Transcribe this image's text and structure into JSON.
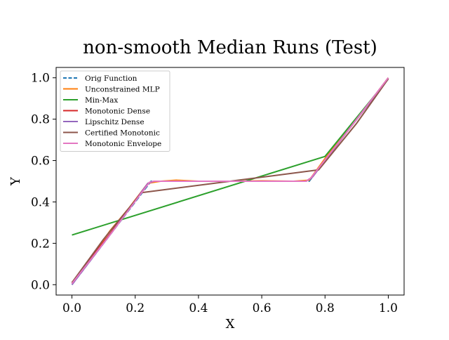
{
  "chart_data": {
    "type": "line",
    "title": "non-smooth Median Runs (Test)",
    "xlabel": "X",
    "ylabel": "Y",
    "xlim": [
      -0.05,
      1.05
    ],
    "ylim": [
      -0.05,
      1.05
    ],
    "xticks": [
      0.0,
      0.2,
      0.4,
      0.6,
      0.8,
      1.0
    ],
    "xtick_labels": [
      "0.0",
      "0.2",
      "0.4",
      "0.6",
      "0.8",
      "1.0"
    ],
    "yticks": [
      0.0,
      0.2,
      0.4,
      0.6,
      0.8,
      1.0
    ],
    "ytick_labels": [
      "0.0",
      "0.2",
      "0.4",
      "0.6",
      "0.8",
      "1.0"
    ],
    "grid": false,
    "legend_position": "upper-left",
    "series": [
      {
        "name": "Orig Function",
        "color": "#1f77b4",
        "dashed": true,
        "x": [
          0.0,
          0.125,
          0.25,
          0.5,
          0.75,
          0.875,
          1.0
        ],
        "y": [
          0.0,
          0.25,
          0.5,
          0.5,
          0.5,
          0.75,
          1.0
        ]
      },
      {
        "name": "Unconstrained MLP",
        "color": "#ff7f0e",
        "dashed": false,
        "x": [
          0.0,
          0.06,
          0.12,
          0.18,
          0.24,
          0.28,
          0.33,
          0.4,
          0.5,
          0.6,
          0.7,
          0.75,
          0.8,
          0.9,
          1.0
        ],
        "y": [
          0.01,
          0.13,
          0.26,
          0.37,
          0.49,
          0.5,
          0.505,
          0.5,
          0.5,
          0.502,
          0.5,
          0.505,
          0.61,
          0.8,
          1.0
        ]
      },
      {
        "name": "Min-Max",
        "color": "#2ca02c",
        "dashed": false,
        "x": [
          0.0,
          0.8,
          1.0
        ],
        "y": [
          0.24,
          0.62,
          0.995
        ]
      },
      {
        "name": "Monotonic Dense",
        "color": "#d62728",
        "dashed": false,
        "x": [
          0.0,
          0.125,
          0.24,
          0.26,
          0.5,
          0.74,
          0.76,
          0.875,
          1.0
        ],
        "y": [
          0.01,
          0.255,
          0.49,
          0.5,
          0.5,
          0.5,
          0.52,
          0.75,
          0.995
        ]
      },
      {
        "name": "Lipschitz Dense",
        "color": "#9467bd",
        "dashed": false,
        "x": [
          0.0,
          0.125,
          0.24,
          0.26,
          0.5,
          0.74,
          0.76,
          0.875,
          1.0
        ],
        "y": [
          0.0,
          0.25,
          0.49,
          0.5,
          0.5,
          0.5,
          0.52,
          0.75,
          0.995
        ]
      },
      {
        "name": "Certified Monotonic",
        "color": "#8c564b",
        "dashed": false,
        "x": [
          0.0,
          0.1,
          0.22,
          0.5,
          0.78,
          0.9,
          1.0
        ],
        "y": [
          0.01,
          0.22,
          0.445,
          0.5,
          0.555,
          0.78,
          0.995
        ]
      },
      {
        "name": "Monotonic Envelope",
        "color": "#e377c2",
        "dashed": false,
        "x": [
          0.0,
          0.125,
          0.245,
          0.26,
          0.5,
          0.74,
          0.755,
          0.875,
          1.0
        ],
        "y": [
          0.005,
          0.25,
          0.495,
          0.5,
          0.5,
          0.5,
          0.515,
          0.75,
          1.0
        ]
      }
    ]
  }
}
